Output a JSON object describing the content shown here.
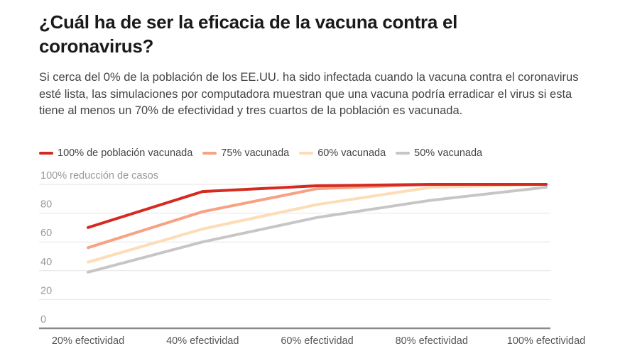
{
  "title": "¿Cuál ha de ser la eficacia de la vacuna contra el coronavirus?",
  "subtitle": "Si cerca del 0% de la población de los EE.UU. ha sido infectada cuando la vacuna contra el coronavirus esté lista, las simulaciones por computadora muestran que una vacuna podría erradicar el virus si esta tiene al menos un 70% de efectividad y tres cuartos de la población es vacunada.",
  "chart_data": {
    "type": "line",
    "title": "¿Cuál ha de ser la eficacia de la vacuna contra el coronavirus?",
    "xlabel": "",
    "ylabel": "reducción de casos",
    "categories": [
      "20% efectividad",
      "40% efectividad",
      "60% efectividad",
      "80% efectividad",
      "100% efectividad"
    ],
    "ylim": [
      0,
      100
    ],
    "yticks": [
      0,
      20,
      40,
      60,
      80,
      100
    ],
    "ytick_labels": [
      "0",
      "20",
      "40",
      "60",
      "80",
      "100% reducción de casos"
    ],
    "grid": true,
    "legend_position": "top-left",
    "series": [
      {
        "name": "100% de población vacunada",
        "color": "#d42a20",
        "values": [
          70,
          95,
          99,
          100,
          100
        ]
      },
      {
        "name": "75% vacunada",
        "color": "#f6a283",
        "values": [
          56,
          81,
          97,
          100,
          100
        ]
      },
      {
        "name": "60% vacunada",
        "color": "#fedcb5",
        "values": [
          46,
          69,
          86,
          98,
          100
        ]
      },
      {
        "name": "50% vacunada",
        "color": "#c6c6c6",
        "values": [
          39,
          60,
          77,
          89,
          98
        ]
      }
    ]
  }
}
